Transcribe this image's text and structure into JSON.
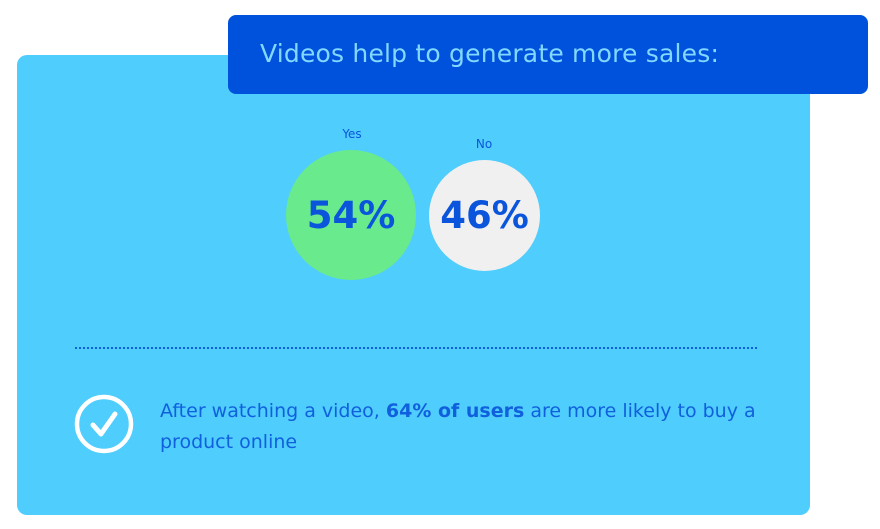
{
  "banner": {
    "title": "Videos help to generate more sales:"
  },
  "results": [
    {
      "label": "Yes",
      "value": "54%",
      "percent": 54,
      "color": "#69ea8c"
    },
    {
      "label": "No",
      "value": "46%",
      "percent": 46,
      "color": "#f0f0f0"
    }
  ],
  "note": {
    "icon": "check-circle-icon",
    "before": "After watching a video, ",
    "highlight": "64% of users",
    "after": " are more likely to buy a product online"
  },
  "colors": {
    "card": "#4fcdfd",
    "banner": "#0052dd",
    "text": "#0a55db"
  }
}
